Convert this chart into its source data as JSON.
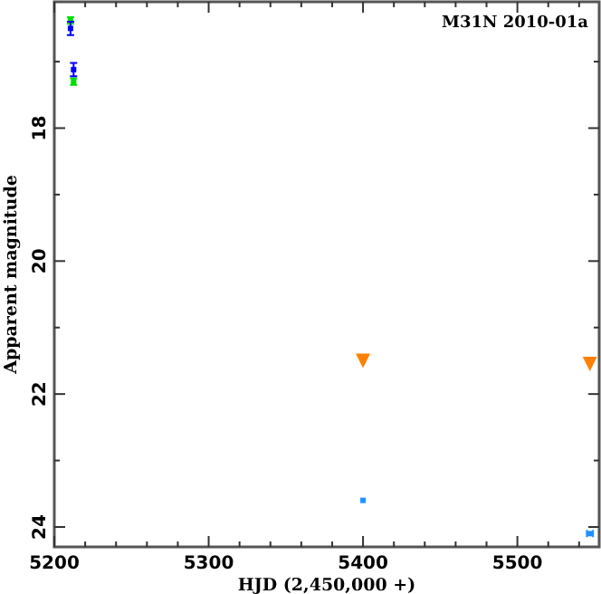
{
  "chart_data": {
    "type": "scatter",
    "title": "M31N 2010-01a",
    "xlabel": "HJD (2,450,000 +)",
    "ylabel": "Apparent magnitude",
    "xlim": [
      5200,
      5553
    ],
    "ylim": [
      24.3,
      16.1
    ],
    "xticks": [
      5200,
      {
        "value": 5220,
        "label": null
      },
      {
        "value": 5240,
        "label": null
      },
      {
        "value": 5260,
        "label": null
      },
      {
        "value": 5280,
        "label": null
      },
      5300,
      {
        "value": 5320,
        "label": null
      },
      {
        "value": 5340,
        "label": null
      },
      {
        "value": 5360,
        "label": null
      },
      {
        "value": 5380,
        "label": null
      },
      5400,
      {
        "value": 5420,
        "label": null
      },
      {
        "value": 5440,
        "label": null
      },
      {
        "value": 5460,
        "label": null
      },
      {
        "value": 5480,
        "label": null
      },
      5500,
      {
        "value": 5520,
        "label": null
      },
      {
        "value": 5540,
        "label": null
      }
    ],
    "yticks": [
      {
        "value": 17,
        "label": null
      },
      18,
      {
        "value": 19,
        "label": null
      },
      20,
      {
        "value": 21,
        "label": null
      },
      22,
      {
        "value": 23,
        "label": null
      },
      24
    ],
    "grid": false,
    "series": [
      {
        "color": "#00dd00",
        "x": [
          5210.5,
          5212.5
        ],
        "values": [
          16.38,
          17.3
        ],
        "errors": [
          0.05,
          0.05
        ],
        "marker": "square"
      },
      {
        "color": "#0000ff",
        "x": [
          5210.5,
          5212.5
        ],
        "values": [
          16.5,
          17.12
        ],
        "errors": [
          0.1,
          0.1
        ],
        "marker": "square"
      },
      {
        "color": "#ff8000",
        "x": [
          5400,
          5547
        ],
        "values": [
          21.5,
          21.55
        ],
        "marker": "triangle"
      },
      {
        "color": "#1e90ff",
        "x": [
          5400,
          5547
        ],
        "values": [
          23.6,
          24.1
        ],
        "xerrors": [
          null,
          2
        ],
        "marker": "square"
      }
    ]
  }
}
